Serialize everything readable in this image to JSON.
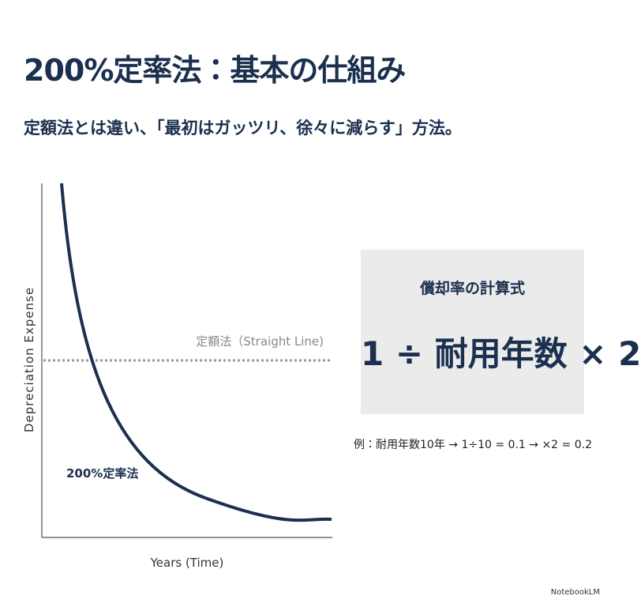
{
  "header": {
    "title": "200%定率法：基本の仕組み",
    "subtitle": "定額法とは違い、「最初はガッツリ、徐々に減らす」方法。"
  },
  "diagram": {
    "y_label": "Depreciation Expense",
    "x_label": "Years (Time)",
    "straight_line_label": "定額法（Straight Line)",
    "curve_label": "200%定率法"
  },
  "formula_box": {
    "title": "償却率の計算式",
    "formula": "1 ÷ 耐用年数 × 2"
  },
  "example": "例：耐用年数10年 → 1÷10 = 0.1 → ×2 = 0.2",
  "footer": "NotebookLM"
}
